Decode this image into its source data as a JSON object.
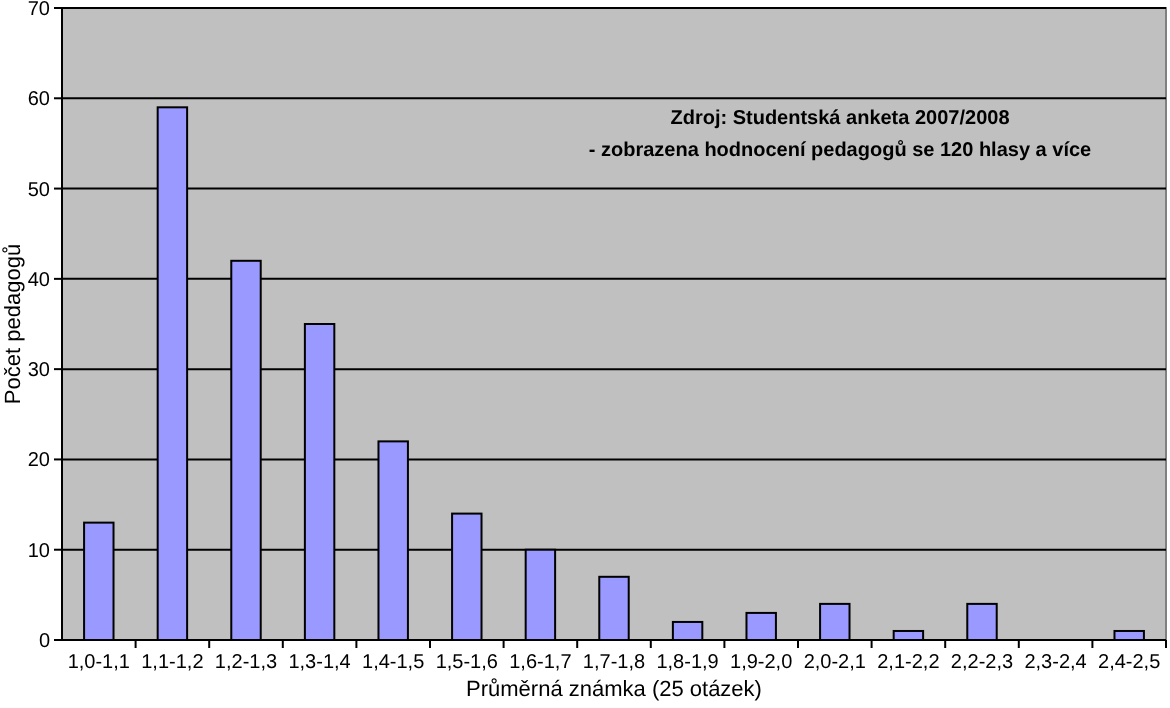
{
  "chart_data": {
    "type": "bar",
    "xlabel": "Průměrná známka (25 otázek)",
    "ylabel": "Počet pedagogů",
    "categories": [
      "1,0-1,1",
      "1,1-1,2",
      "1,2-1,3",
      "1,3-1,4",
      "1,4-1,5",
      "1,5-1,6",
      "1,6-1,7",
      "1,7-1,8",
      "1,8-1,9",
      "1,9-2,0",
      "2,0-2,1",
      "2,1-2,2",
      "2,2-2,3",
      "2,3-2,4",
      "2,4-2,5"
    ],
    "values": [
      13,
      59,
      42,
      35,
      22,
      14,
      10,
      7,
      2,
      3,
      4,
      1,
      4,
      0,
      1
    ],
    "color": "#9999ff",
    "ylim": [
      0,
      70
    ],
    "yticks": [
      0,
      10,
      20,
      30,
      40,
      50,
      60,
      70
    ],
    "grid": "y",
    "annotations": [
      "Zdroj: Studentská anketa 2007/2008",
      "- zobrazena hodnocení pedagogů se 120 hlasy a více"
    ]
  }
}
